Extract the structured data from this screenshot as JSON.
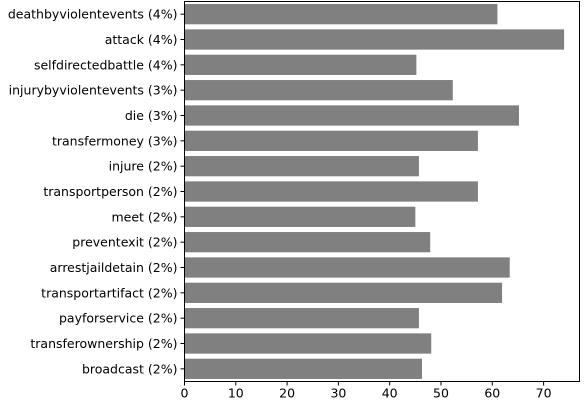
{
  "chart_data": {
    "type": "bar",
    "orientation": "horizontal",
    "categories": [
      "deathbyviolentevents (4%)",
      "attack (4%)",
      "selfdirectedbattle (4%)",
      "injurybyviolentevents (3%)",
      "die (3%)",
      "transfermoney (3%)",
      "injure (2%)",
      "transportperson (2%)",
      "meet (2%)",
      "preventexit (2%)",
      "arrestjaildetain (2%)",
      "transportartifact (2%)",
      "payforservice (2%)",
      "transferownership (2%)",
      "broadcast (2%)"
    ],
    "values": [
      61,
      74,
      45.2,
      52.3,
      65.2,
      57.2,
      45.7,
      57.2,
      45,
      47.9,
      63.4,
      61.9,
      45.7,
      48.1,
      46.3
    ],
    "xlim": [
      0,
      77
    ],
    "xticks": [
      0,
      10,
      20,
      30,
      40,
      50,
      60,
      70
    ],
    "title": "",
    "xlabel": "",
    "ylabel": "",
    "grid": false,
    "bar_color": "#808080"
  }
}
